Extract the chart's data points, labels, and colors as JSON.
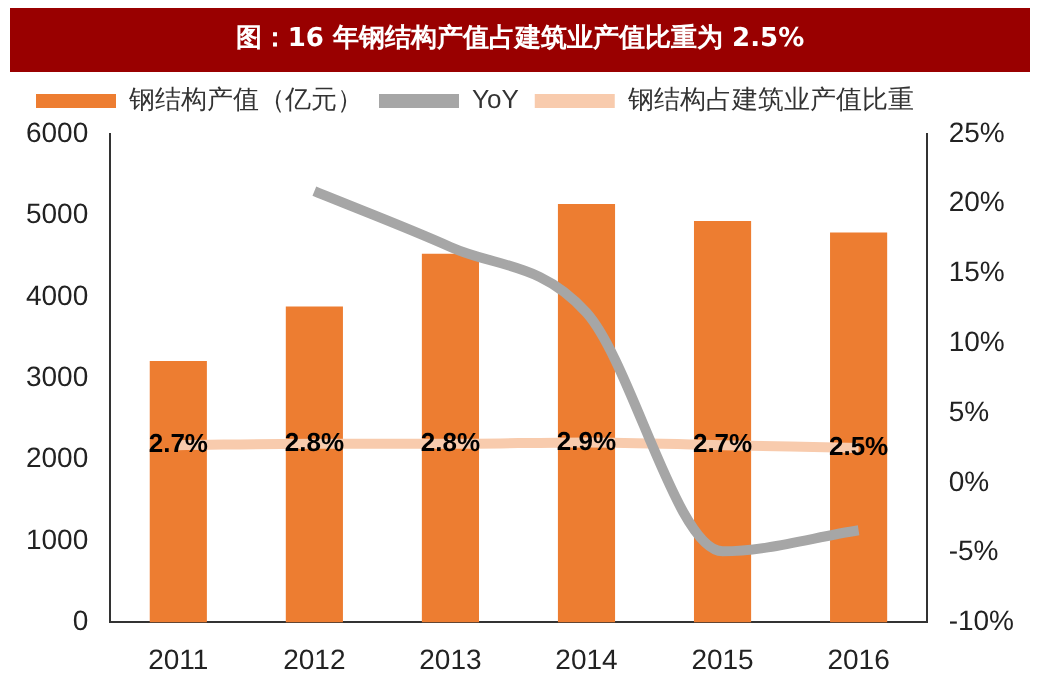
{
  "chart_data": {
    "type": "bar",
    "title": "图：16 年钢结构产值占建筑业产值比重为 2.5%",
    "categories": [
      "2011",
      "2012",
      "2013",
      "2014",
      "2015",
      "2016"
    ],
    "series": [
      {
        "name": "钢结构产值（亿元）",
        "color": "#ed7d31",
        "values": [
          3210,
          3880,
          4530,
          5140,
          4930,
          4790
        ]
      },
      {
        "name": "YoY",
        "type": "line",
        "axis": "y2",
        "color": "#a6a6a6",
        "values": [
          null,
          20.9,
          16.9,
          12.2,
          -4.9,
          -3.4
        ]
      },
      {
        "name": "钢结构占建筑业产值比重",
        "type": "line",
        "axis": "y2",
        "color": "#f8cbad",
        "values": [
          2.7,
          2.8,
          2.8,
          2.9,
          2.7,
          2.5
        ],
        "value_labels": [
          "2.7%",
          "2.8%",
          "2.8%",
          "2.9%",
          "2.7%",
          "2.5%"
        ]
      }
    ],
    "ylim": [
      0,
      6000
    ],
    "yticks": [
      0,
      1000,
      2000,
      3000,
      4000,
      5000,
      6000
    ],
    "y2lim": [
      -10,
      25
    ],
    "y2ticks": [
      {
        "value": -10,
        "label": "-10%"
      },
      {
        "value": -5,
        "label": "-5%"
      },
      {
        "value": 0,
        "label": "0%"
      },
      {
        "value": 5,
        "label": "5%"
      },
      {
        "value": 10,
        "label": "10%"
      },
      {
        "value": 15,
        "label": "15%"
      },
      {
        "value": 20,
        "label": "20%"
      },
      {
        "value": 25,
        "label": "25%"
      }
    ],
    "grid": false,
    "legend": "top",
    "marker": "none"
  }
}
